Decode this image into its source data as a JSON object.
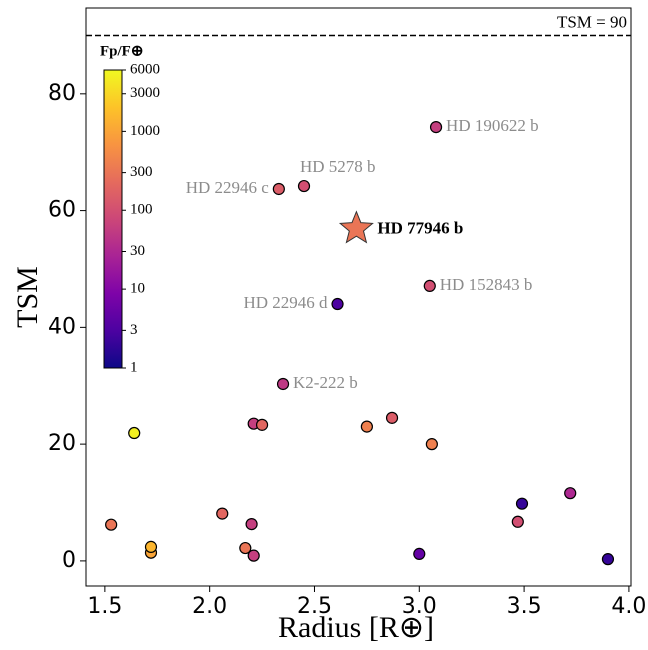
{
  "chart_data": {
    "type": "scatter",
    "x_label": "Radius [R⊕]",
    "y_label": "TSM",
    "xlim": [
      1.41,
      4.01
    ],
    "ylim": [
      -4.3,
      94.7
    ],
    "xticks": [
      1.5,
      {
        "value": 2.0,
        "label": "2.0"
      },
      2.5,
      {
        "value": 3.0,
        "label": "3.0"
      },
      3.5,
      {
        "value": 4.0,
        "label": "4.0"
      }
    ],
    "yticks": [
      0,
      20,
      40,
      60,
      80
    ],
    "hline": {
      "value": 90,
      "label": "TSM = 90"
    },
    "colormap": "plasma",
    "colorbar": {
      "title": "Fp/F⊕",
      "log": true,
      "clim": [
        1,
        6000
      ],
      "ticks": [
        1,
        3,
        10,
        30,
        100,
        300,
        1000,
        3000,
        6000
      ]
    },
    "x": [
      3.08,
      2.45,
      2.33,
      3.05,
      2.61,
      2.35,
      1.64,
      2.21,
      2.25,
      2.75,
      2.87,
      3.06,
      1.53,
      1.72,
      1.72,
      2.06,
      2.2,
      2.17,
      2.21,
      3.0,
      3.49,
      3.47,
      3.72,
      3.9
    ],
    "y": [
      74.3,
      64.2,
      63.7,
      47.1,
      44.0,
      30.3,
      21.9,
      23.5,
      23.3,
      23.0,
      24.5,
      20.0,
      6.2,
      1.4,
      2.4,
      8.1,
      6.3,
      2.2,
      0.9,
      1.2,
      9.8,
      6.7,
      11.6,
      0.3
    ],
    "color_values": [
      60,
      100,
      150,
      100,
      3,
      50,
      5000,
      60,
      200,
      400,
      150,
      400,
      300,
      1000,
      1500,
      200,
      60,
      300,
      60,
      5,
      2,
      100,
      30,
      2
    ],
    "labels": [
      "HD 190622 b",
      "HD 5278 b",
      "HD 22946 c",
      "HD 152843 b",
      "HD 22946 d",
      "K2-222 b",
      null,
      null,
      null,
      null,
      null,
      null,
      null,
      null,
      null,
      null,
      null,
      null,
      null,
      null,
      null,
      null,
      null,
      null
    ],
    "star": {
      "x": 2.7,
      "y": 56.9,
      "color_value": 300,
      "label": "HD 77946 b"
    }
  }
}
